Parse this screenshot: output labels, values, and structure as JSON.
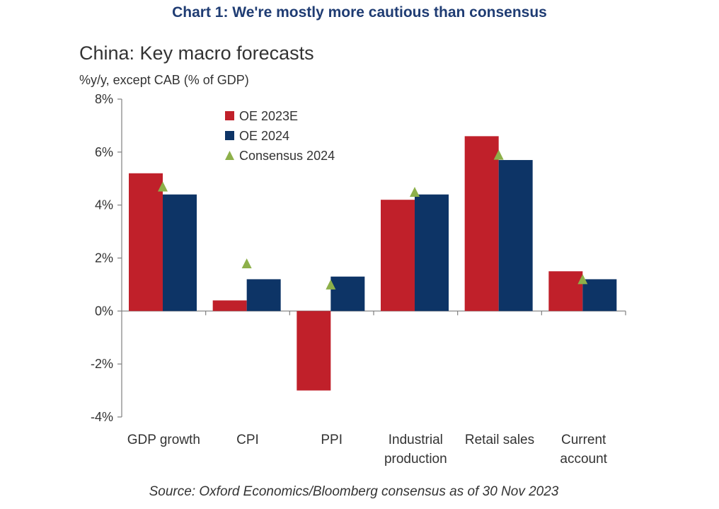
{
  "header": "Chart 1: We're mostly more cautious than consensus",
  "chart_data": {
    "type": "bar",
    "title": "China: Key macro forecasts",
    "ylabel": "%y/y, except CAB (% of GDP)",
    "categories": [
      [
        "GDP growth"
      ],
      [
        "CPI"
      ],
      [
        "PPI"
      ],
      [
        "Industrial",
        "production"
      ],
      [
        "Retail sales"
      ],
      [
        "Current",
        "account"
      ]
    ],
    "series": [
      {
        "name": "OE 2023E",
        "kind": "bar",
        "color": "#c0202a",
        "values": [
          5.2,
          0.4,
          -3.0,
          4.2,
          6.6,
          1.5
        ]
      },
      {
        "name": "OE 2024",
        "kind": "bar",
        "color": "#0d3466",
        "values": [
          4.4,
          1.2,
          1.3,
          4.4,
          5.7,
          1.2
        ]
      },
      {
        "name": "Consensus 2024",
        "kind": "marker",
        "marker": "triangle",
        "color": "#8db04a",
        "values": [
          4.7,
          1.8,
          1.0,
          4.5,
          5.9,
          1.2
        ]
      }
    ],
    "ylim": [
      -4,
      8
    ],
    "yticks": [
      "8%",
      "6%",
      "4%",
      "2%",
      "0%",
      "-2%",
      "-4%"
    ],
    "ytick_values": [
      8,
      6,
      4,
      2,
      0,
      -2,
      -4
    ],
    "legend_position": "top-left"
  },
  "source": "Source: Oxford Economics/Bloomberg consensus as of 30 Nov 2023"
}
